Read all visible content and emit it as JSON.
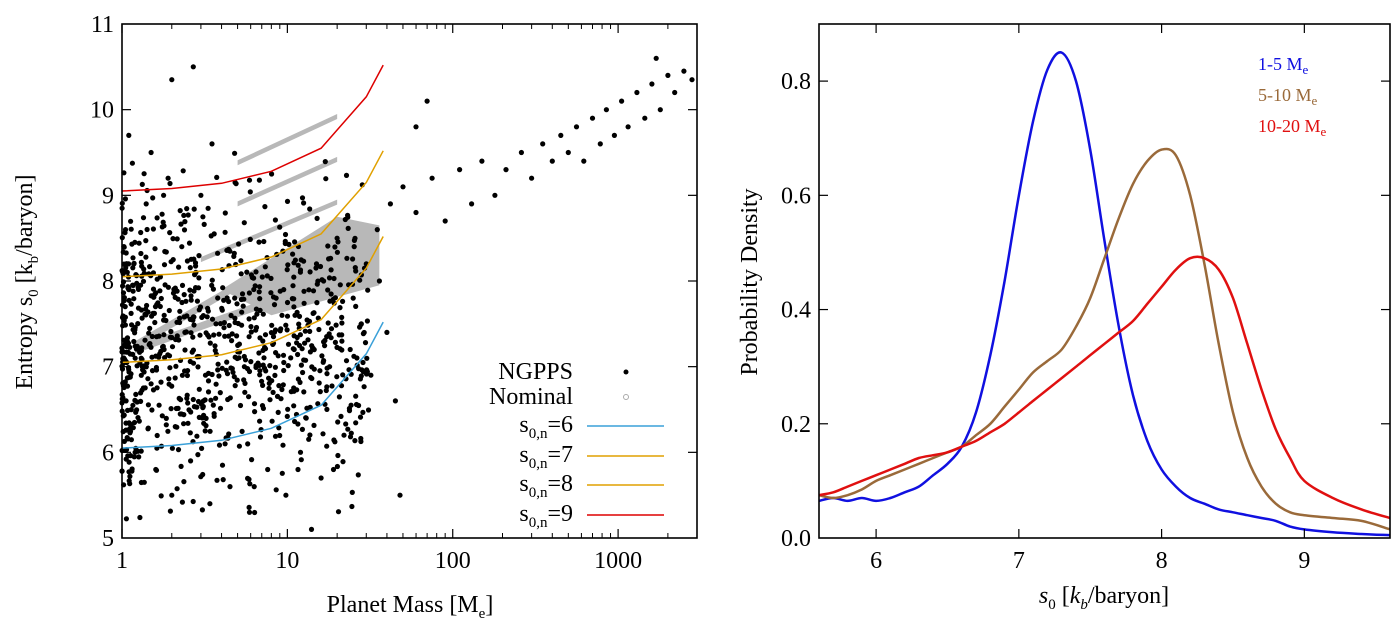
{
  "chart_data": [
    {
      "type": "scatter",
      "xlabel": "Planet Mass [M_e]",
      "ylabel": "Entropy s_0 [k_b/baryon]",
      "x_scale": "log",
      "xlim": [
        1,
        3000
      ],
      "ylim": [
        5,
        11
      ],
      "x_ticks": [
        1,
        10,
        100,
        1000
      ],
      "x_tick_labels": [
        "1",
        "10",
        "100",
        "1000"
      ],
      "y_ticks": [
        5,
        6,
        7,
        8,
        9,
        10,
        11
      ],
      "y_tick_labels": [
        "5",
        "6",
        "7",
        "8",
        "9",
        "10",
        "11"
      ],
      "legend_position": "bottom-right",
      "series": [
        {
          "name": "NGPPS",
          "kind": "points",
          "color": "#000000",
          "points": [
            [
              1.1,
              7.9
            ],
            [
              1.3,
              7.2
            ],
            [
              1.5,
              6.8
            ],
            [
              1.8,
              7.6
            ],
            [
              2.1,
              6.3
            ],
            [
              2.4,
              7.4
            ],
            [
              2.8,
              8.1
            ],
            [
              3.2,
              6.9
            ],
            [
              3.7,
              7.5
            ],
            [
              4.2,
              6.1
            ],
            [
              4.8,
              7.8
            ],
            [
              5.5,
              7.0
            ],
            [
              6.3,
              5.6
            ],
            [
              7.1,
              7.3
            ],
            [
              8.2,
              6.7
            ],
            [
              9.5,
              7.9
            ],
            [
              11,
              7.2
            ],
            [
              13,
              6.4
            ],
            [
              15,
              8.2
            ],
            [
              18,
              7.0
            ],
            [
              1.2,
              6.0
            ],
            [
              1.6,
              5.8
            ],
            [
              2.0,
              5.5
            ],
            [
              2.6,
              5.9
            ],
            [
              3.4,
              5.4
            ],
            [
              4.5,
              5.6
            ],
            [
              5.9,
              5.3
            ],
            [
              7.6,
              5.8
            ],
            [
              9.8,
              5.5
            ],
            [
              12,
              6.0
            ],
            [
              1.05,
              8.6
            ],
            [
              1.4,
              8.9
            ],
            [
              1.9,
              9.2
            ],
            [
              2.3,
              8.4
            ],
            [
              3.0,
              9.0
            ],
            [
              1.1,
              9.7
            ],
            [
              2.0,
              10.35
            ],
            [
              2.7,
              10.5
            ],
            [
              3.5,
              9.6
            ],
            [
              1.5,
              9.5
            ],
            [
              25,
              7.8
            ],
            [
              30,
              8.2
            ],
            [
              35,
              8.6
            ],
            [
              42,
              8.9
            ],
            [
              50,
              9.1
            ],
            [
              60,
              8.8
            ],
            [
              75,
              9.2
            ],
            [
              90,
              8.7
            ],
            [
              110,
              9.3
            ],
            [
              130,
              8.9
            ],
            [
              150,
              9.4
            ],
            [
              180,
              9.0
            ],
            [
              210,
              9.3
            ],
            [
              260,
              9.5
            ],
            [
              300,
              9.2
            ],
            [
              350,
              9.6
            ],
            [
              400,
              9.4
            ],
            [
              450,
              9.7
            ],
            [
              500,
              9.5
            ],
            [
              560,
              9.8
            ],
            [
              620,
              9.4
            ],
            [
              700,
              9.9
            ],
            [
              780,
              9.6
            ],
            [
              850,
              10.0
            ],
            [
              950,
              9.7
            ],
            [
              1050,
              10.1
            ],
            [
              1150,
              9.8
            ],
            [
              1300,
              10.2
            ],
            [
              1450,
              9.9
            ],
            [
              1600,
              10.3
            ],
            [
              1800,
              10.0
            ],
            [
              2000,
              10.4
            ],
            [
              2200,
              10.2
            ],
            [
              2500,
              10.45
            ],
            [
              2800,
              10.35
            ],
            [
              1700,
              10.6
            ],
            [
              60,
              9.8
            ],
            [
              70,
              10.1
            ],
            [
              40,
              7.4
            ],
            [
              45,
              6.6
            ],
            [
              48,
              5.5
            ],
            [
              32,
              6.9
            ],
            [
              28,
              7.5
            ],
            [
              22,
              6.2
            ],
            [
              19,
              5.8
            ],
            [
              16,
              5.7
            ],
            [
              14,
              5.1
            ],
            [
              20,
              8.5
            ],
            [
              24,
              7.2
            ],
            [
              36,
              8.0
            ]
          ]
        },
        {
          "name": "Nominal",
          "kind": "bands",
          "color": "#b8b8b8",
          "bands": [
            {
              "x": [
                5,
                20
              ],
              "y": [
                9.38,
                9.92
              ]
            },
            {
              "x": [
                5,
                20
              ],
              "y": [
                8.9,
                9.42
              ]
            },
            {
              "x": [
                3,
                20
              ],
              "y": [
                8.25,
                8.92
              ]
            },
            {
              "x": [
                1.2,
                20
              ],
              "y": [
                7.25,
                8.62
              ]
            },
            {
              "x": [
                1.2,
                35
              ],
              "y": [
                7.2,
                8.2
              ]
            }
          ]
        },
        {
          "name": "s_0,n=6",
          "kind": "line",
          "color": "#3aa0d8",
          "x": [
            1,
            2,
            4,
            8,
            16,
            30,
            38
          ],
          "y": [
            6.05,
            6.08,
            6.14,
            6.28,
            6.55,
            7.15,
            7.52
          ]
        },
        {
          "name": "s_0,n=7",
          "kind": "line",
          "color": "#e0a000",
          "x": [
            1,
            2,
            4,
            8,
            16,
            30,
            38
          ],
          "y": [
            7.05,
            7.08,
            7.14,
            7.28,
            7.55,
            8.15,
            8.52
          ]
        },
        {
          "name": "s_0,n=8",
          "kind": "line",
          "color": "#e0a000",
          "x": [
            1,
            2,
            4,
            8,
            16,
            30,
            38
          ],
          "y": [
            8.05,
            8.08,
            8.14,
            8.28,
            8.55,
            9.15,
            9.52
          ]
        },
        {
          "name": "s_0,n=9",
          "kind": "line",
          "color": "#dd0000",
          "x": [
            1,
            2,
            4,
            8,
            16,
            30,
            38
          ],
          "y": [
            9.05,
            9.08,
            9.14,
            9.28,
            9.55,
            10.15,
            10.52
          ]
        }
      ]
    },
    {
      "type": "line",
      "xlabel": "s_0 [k_b/baryon]",
      "ylabel": "Probability Density",
      "xlim": [
        5.6,
        9.6
      ],
      "ylim": [
        0,
        0.9
      ],
      "x_ticks": [
        6,
        7,
        8,
        9
      ],
      "x_tick_labels": [
        "6",
        "7",
        "8",
        "9"
      ],
      "y_ticks": [
        0,
        0.2,
        0.4,
        0.6,
        0.8
      ],
      "y_tick_labels": [
        "0.0",
        "0.2",
        "0.4",
        "0.6",
        "0.8"
      ],
      "legend_position": "top-right",
      "series": [
        {
          "name": "1-5 M_e",
          "color": "#1010e0",
          "x": [
            5.6,
            5.7,
            5.8,
            5.9,
            6.0,
            6.1,
            6.2,
            6.3,
            6.4,
            6.5,
            6.6,
            6.7,
            6.8,
            6.9,
            7.0,
            7.1,
            7.2,
            7.3,
            7.4,
            7.5,
            7.6,
            7.7,
            7.8,
            7.9,
            8.0,
            8.1,
            8.2,
            8.3,
            8.4,
            8.5,
            8.6,
            8.7,
            8.8,
            8.9,
            9.0,
            9.2,
            9.4,
            9.6
          ],
          "y": [
            0.065,
            0.07,
            0.065,
            0.07,
            0.065,
            0.07,
            0.08,
            0.09,
            0.11,
            0.13,
            0.16,
            0.22,
            0.32,
            0.45,
            0.6,
            0.73,
            0.82,
            0.85,
            0.8,
            0.68,
            0.52,
            0.37,
            0.25,
            0.17,
            0.12,
            0.09,
            0.07,
            0.06,
            0.05,
            0.045,
            0.04,
            0.035,
            0.03,
            0.02,
            0.015,
            0.01,
            0.007,
            0.005
          ]
        },
        {
          "name": "5-10 M_e",
          "color": "#9a6a3a",
          "x": [
            5.6,
            5.7,
            5.8,
            5.9,
            6.0,
            6.1,
            6.2,
            6.3,
            6.4,
            6.5,
            6.6,
            6.7,
            6.8,
            6.9,
            7.0,
            7.1,
            7.2,
            7.3,
            7.4,
            7.5,
            7.6,
            7.7,
            7.8,
            7.9,
            8.0,
            8.1,
            8.2,
            8.3,
            8.4,
            8.5,
            8.6,
            8.7,
            8.8,
            8.9,
            9.0,
            9.2,
            9.4,
            9.6
          ],
          "y": [
            0.075,
            0.07,
            0.075,
            0.085,
            0.1,
            0.11,
            0.12,
            0.13,
            0.14,
            0.15,
            0.16,
            0.18,
            0.2,
            0.23,
            0.26,
            0.29,
            0.31,
            0.33,
            0.37,
            0.42,
            0.49,
            0.56,
            0.62,
            0.66,
            0.68,
            0.67,
            0.6,
            0.48,
            0.34,
            0.22,
            0.14,
            0.09,
            0.06,
            0.045,
            0.04,
            0.035,
            0.03,
            0.015
          ]
        },
        {
          "name": "10-20 M_e",
          "color": "#e01010",
          "x": [
            5.6,
            5.7,
            5.8,
            5.9,
            6.0,
            6.1,
            6.2,
            6.3,
            6.4,
            6.5,
            6.6,
            6.7,
            6.8,
            6.9,
            7.0,
            7.1,
            7.2,
            7.3,
            7.4,
            7.5,
            7.6,
            7.7,
            7.8,
            7.9,
            8.0,
            8.1,
            8.2,
            8.3,
            8.4,
            8.5,
            8.6,
            8.7,
            8.8,
            8.9,
            9.0,
            9.2,
            9.4,
            9.6
          ],
          "y": [
            0.075,
            0.08,
            0.09,
            0.1,
            0.11,
            0.12,
            0.13,
            0.14,
            0.145,
            0.15,
            0.16,
            0.17,
            0.185,
            0.2,
            0.22,
            0.24,
            0.26,
            0.28,
            0.3,
            0.32,
            0.34,
            0.36,
            0.38,
            0.41,
            0.44,
            0.47,
            0.49,
            0.49,
            0.47,
            0.42,
            0.34,
            0.26,
            0.19,
            0.14,
            0.1,
            0.07,
            0.05,
            0.035
          ]
        }
      ]
    }
  ]
}
